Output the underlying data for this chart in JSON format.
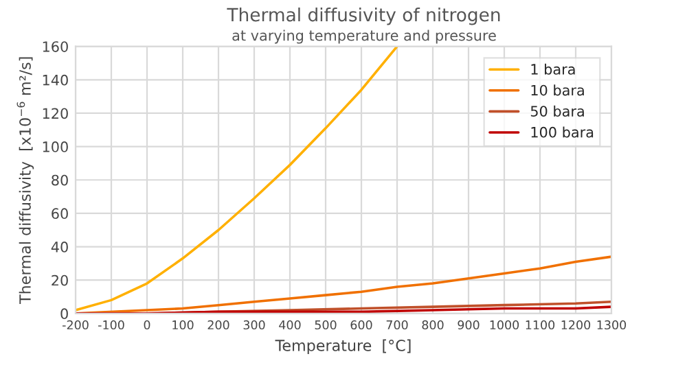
{
  "chart_data": {
    "type": "line",
    "title": "Thermal diffusivity of nitrogen",
    "subtitle": "at varying temperature and pressure",
    "xlabel": "Temperature  [°C]",
    "ylabel": "Thermal diffusivity  [x10$^{−6}$ m²/s]",
    "series": [
      {
        "name": "1 bara",
        "color": "#ffb000",
        "x": [
          -200,
          -100,
          0,
          100,
          200,
          300,
          400,
          500,
          600,
          700
        ],
        "values": [
          2,
          8,
          18,
          33,
          50,
          69,
          89,
          111,
          134,
          160
        ]
      },
      {
        "name": "10 bara",
        "color": "#f07000",
        "x": [
          -200,
          0,
          100,
          200,
          300,
          400,
          500,
          600,
          700,
          800,
          900,
          1000,
          1100,
          1200,
          1300
        ],
        "values": [
          0,
          2,
          3,
          5,
          7,
          9,
          11,
          13,
          16,
          18,
          21,
          24,
          27,
          31,
          34
        ]
      },
      {
        "name": "50 bara",
        "color": "#c0502a",
        "x": [
          -200,
          0,
          200,
          400,
          600,
          800,
          1000,
          1200,
          1300
        ],
        "values": [
          0,
          0,
          1,
          2,
          3,
          4,
          5,
          6,
          7
        ]
      },
      {
        "name": "100 bara",
        "color": "#c00000",
        "x": [
          -200,
          0,
          200,
          400,
          600,
          800,
          1000,
          1200,
          1300
        ],
        "values": [
          0,
          0,
          1,
          1,
          1,
          2,
          3,
          3,
          4
        ]
      }
    ],
    "xlim": [
      -200,
      1300
    ],
    "xticks": [
      -200,
      -100,
      0,
      100,
      200,
      300,
      400,
      500,
      600,
      700,
      800,
      900,
      1000,
      1100,
      1200,
      1300
    ],
    "ylim": [
      0,
      160
    ],
    "yticks": [
      0,
      20,
      40,
      60,
      80,
      100,
      120,
      140,
      160
    ],
    "grid": true,
    "legend": "top right",
    "marker": "none",
    "line_style": "solid"
  }
}
